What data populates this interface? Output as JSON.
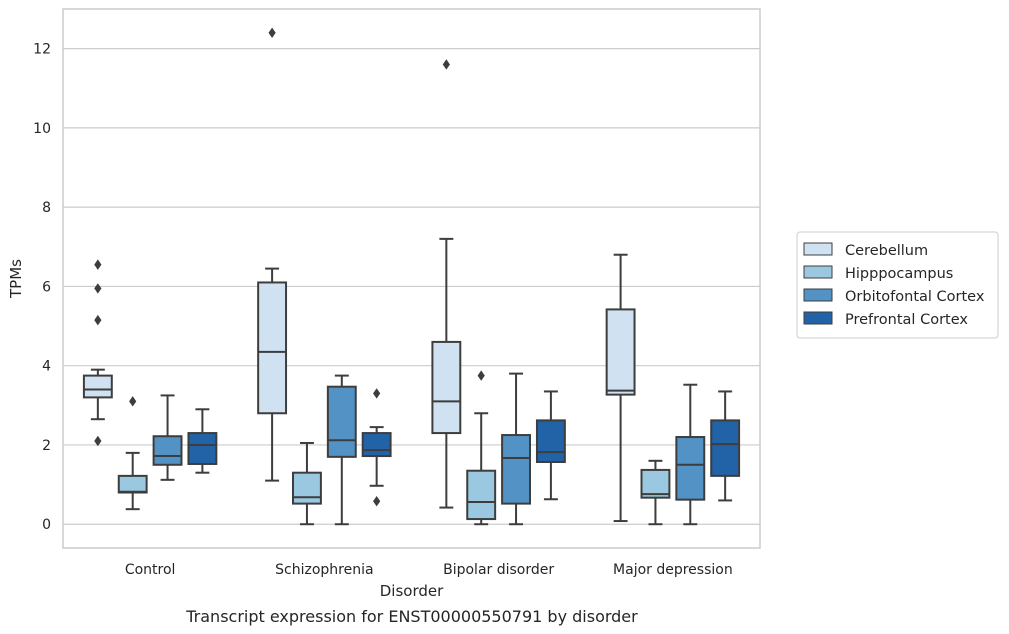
{
  "chart_data": {
    "type": "box",
    "title": "",
    "caption": "Transcript expression for ENST00000550791 by disorder",
    "xlabel": "Disorder",
    "ylabel": "TPMs",
    "ylim": [
      -0.6,
      13.0
    ],
    "yticks": [
      0,
      2,
      4,
      6,
      8,
      10,
      12
    ],
    "grid": true,
    "legend_position": "right",
    "categories": [
      "Control",
      "Schizophrenia",
      "Bipolar disorder",
      "Major depression"
    ],
    "series": [
      {
        "name": "Cerebellum",
        "color": "#d0e2f2",
        "boxes": [
          {
            "whislo": 2.65,
            "q1": 3.2,
            "med": 3.4,
            "q3": 3.75,
            "whishi": 3.9,
            "fliers": [
              6.55,
              5.95,
              5.15,
              2.1
            ]
          },
          {
            "whislo": 1.1,
            "q1": 2.8,
            "med": 4.35,
            "q3": 6.1,
            "whishi": 6.45,
            "fliers": [
              12.4
            ]
          },
          {
            "whislo": 0.42,
            "q1": 2.3,
            "med": 3.1,
            "q3": 4.6,
            "whishi": 7.2,
            "fliers": [
              11.6
            ]
          },
          {
            "whislo": 0.08,
            "q1": 3.27,
            "med": 3.37,
            "q3": 5.42,
            "whishi": 6.8,
            "fliers": []
          }
        ]
      },
      {
        "name": "Hipppocampus",
        "color": "#9ac8e0",
        "boxes": [
          {
            "whislo": 0.38,
            "q1": 0.8,
            "med": 0.82,
            "q3": 1.22,
            "whishi": 1.8,
            "fliers": [
              3.1
            ]
          },
          {
            "whislo": 0.0,
            "q1": 0.52,
            "med": 0.68,
            "q3": 1.3,
            "whishi": 2.05,
            "fliers": []
          },
          {
            "whislo": 0.0,
            "q1": 0.13,
            "med": 0.56,
            "q3": 1.35,
            "whishi": 2.8,
            "fliers": [
              3.75
            ]
          },
          {
            "whislo": 0.0,
            "q1": 0.67,
            "med": 0.76,
            "q3": 1.37,
            "whishi": 1.6,
            "fliers": []
          }
        ]
      },
      {
        "name": "Orbitofontal Cortex",
        "color": "#5292c5",
        "boxes": [
          {
            "whislo": 1.12,
            "q1": 1.5,
            "med": 1.72,
            "q3": 2.22,
            "whishi": 3.25,
            "fliers": []
          },
          {
            "whislo": 0.0,
            "q1": 1.7,
            "med": 2.12,
            "q3": 3.47,
            "whishi": 3.75,
            "fliers": []
          },
          {
            "whislo": 0.0,
            "q1": 0.52,
            "med": 1.67,
            "q3": 2.25,
            "whishi": 3.8,
            "fliers": []
          },
          {
            "whislo": 0.0,
            "q1": 0.62,
            "med": 1.5,
            "q3": 2.2,
            "whishi": 3.52,
            "fliers": []
          }
        ]
      },
      {
        "name": "Prefrontal Cortex",
        "color": "#2262a6",
        "boxes": [
          {
            "whislo": 1.3,
            "q1": 1.52,
            "med": 2.0,
            "q3": 2.3,
            "whishi": 2.9,
            "fliers": []
          },
          {
            "whislo": 0.97,
            "q1": 1.72,
            "med": 1.87,
            "q3": 2.3,
            "whishi": 2.45,
            "fliers": [
              3.3,
              0.58
            ]
          },
          {
            "whislo": 0.63,
            "q1": 1.57,
            "med": 1.82,
            "q3": 2.62,
            "whishi": 3.35,
            "fliers": []
          },
          {
            "whislo": 0.6,
            "q1": 1.22,
            "med": 2.02,
            "q3": 2.62,
            "whishi": 3.35,
            "fliers": []
          }
        ]
      }
    ]
  }
}
